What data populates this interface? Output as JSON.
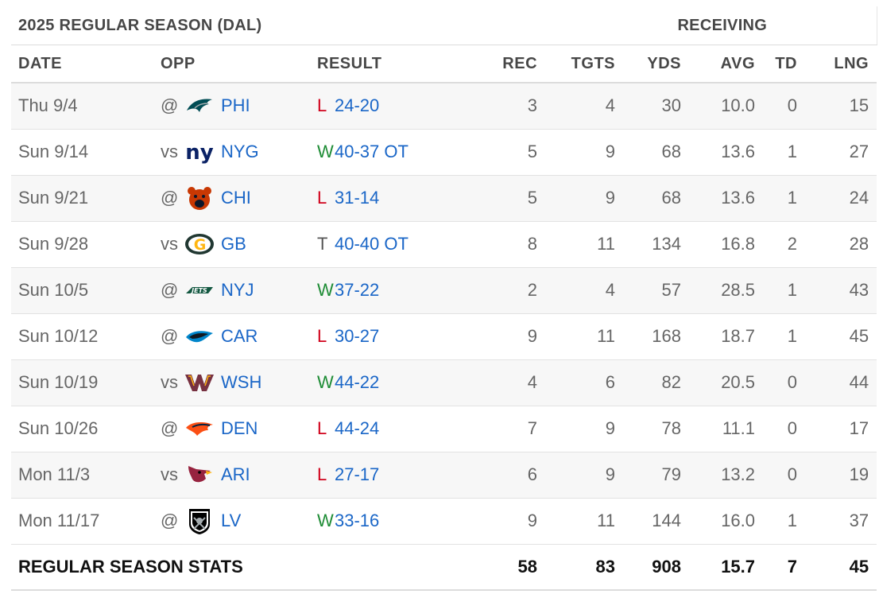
{
  "header": {
    "season_title": "2025 REGULAR SEASON (DAL)",
    "group_title": "RECEIVING"
  },
  "columns": [
    "DATE",
    "OPP",
    "RESULT",
    "REC",
    "TGTS",
    "YDS",
    "AVG",
    "TD",
    "LNG"
  ],
  "games": [
    {
      "date": "Thu 9/4",
      "loc": "@",
      "team": "PHI",
      "logo": "eagles-logo",
      "result": "L",
      "score": "24-20",
      "rec": "3",
      "tgts": "4",
      "yds": "30",
      "avg": "10.0",
      "td": "0",
      "lng": "15"
    },
    {
      "date": "Sun 9/14",
      "loc": "vs",
      "team": "NYG",
      "logo": "giants-logo",
      "result": "W",
      "score": "40-37 OT",
      "rec": "5",
      "tgts": "9",
      "yds": "68",
      "avg": "13.6",
      "td": "1",
      "lng": "27"
    },
    {
      "date": "Sun 9/21",
      "loc": "@",
      "team": "CHI",
      "logo": "bears-logo",
      "result": "L",
      "score": "31-14",
      "rec": "5",
      "tgts": "9",
      "yds": "68",
      "avg": "13.6",
      "td": "1",
      "lng": "24"
    },
    {
      "date": "Sun 9/28",
      "loc": "vs",
      "team": "GB",
      "logo": "packers-logo",
      "result": "T",
      "score": "40-40 OT",
      "rec": "8",
      "tgts": "11",
      "yds": "134",
      "avg": "16.8",
      "td": "2",
      "lng": "28"
    },
    {
      "date": "Sun 10/5",
      "loc": "@",
      "team": "NYJ",
      "logo": "jets-logo",
      "result": "W",
      "score": "37-22",
      "rec": "2",
      "tgts": "4",
      "yds": "57",
      "avg": "28.5",
      "td": "1",
      "lng": "43"
    },
    {
      "date": "Sun 10/12",
      "loc": "@",
      "team": "CAR",
      "logo": "panthers-logo",
      "result": "L",
      "score": "30-27",
      "rec": "9",
      "tgts": "11",
      "yds": "168",
      "avg": "18.7",
      "td": "1",
      "lng": "45"
    },
    {
      "date": "Sun 10/19",
      "loc": "vs",
      "team": "WSH",
      "logo": "commanders-logo",
      "result": "W",
      "score": "44-22",
      "rec": "4",
      "tgts": "6",
      "yds": "82",
      "avg": "20.5",
      "td": "0",
      "lng": "44"
    },
    {
      "date": "Sun 10/26",
      "loc": "@",
      "team": "DEN",
      "logo": "broncos-logo",
      "result": "L",
      "score": "44-24",
      "rec": "7",
      "tgts": "9",
      "yds": "78",
      "avg": "11.1",
      "td": "0",
      "lng": "17"
    },
    {
      "date": "Mon 11/3",
      "loc": "vs",
      "team": "ARI",
      "logo": "cardinals-logo",
      "result": "L",
      "score": "27-17",
      "rec": "6",
      "tgts": "9",
      "yds": "79",
      "avg": "13.2",
      "td": "0",
      "lng": "19"
    },
    {
      "date": "Mon 11/17",
      "loc": "@",
      "team": "LV",
      "logo": "raiders-logo",
      "result": "W",
      "score": "33-16",
      "rec": "9",
      "tgts": "11",
      "yds": "144",
      "avg": "16.0",
      "td": "1",
      "lng": "37"
    }
  ],
  "totals": {
    "label": "REGULAR SEASON STATS",
    "rec": "58",
    "tgts": "83",
    "yds": "908",
    "avg": "15.7",
    "td": "7",
    "lng": "45"
  }
}
